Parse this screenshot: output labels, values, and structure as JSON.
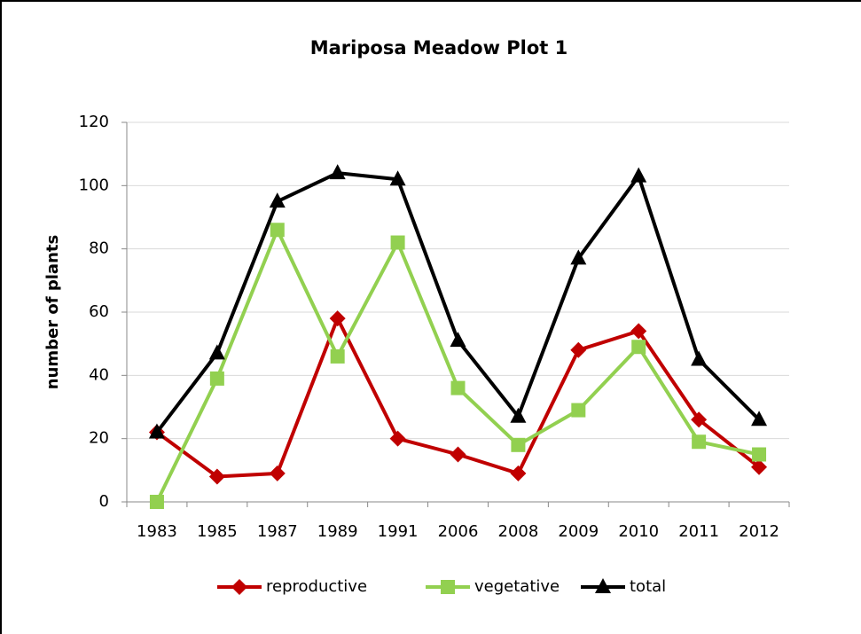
{
  "chart_data": {
    "type": "line",
    "title": "Mariposa Meadow Plot 1",
    "y_label": "number of plants",
    "categories": [
      "1983",
      "1985",
      "1987",
      "1989",
      "1991",
      "2006",
      "2008",
      "2009",
      "2010",
      "2011",
      "2012"
    ],
    "series": [
      {
        "name": "reproductive",
        "color": "#c00000",
        "marker": "diamond",
        "values": [
          22,
          8,
          9,
          58,
          20,
          15,
          9,
          48,
          54,
          26,
          11
        ]
      },
      {
        "name": "vegetative",
        "color": "#92d050",
        "marker": "square",
        "values": [
          0,
          39,
          86,
          46,
          82,
          36,
          18,
          29,
          49,
          19,
          15
        ]
      },
      {
        "name": "total",
        "color": "#000000",
        "marker": "triangle",
        "values": [
          22,
          47,
          95,
          104,
          102,
          51,
          27,
          77,
          103,
          45,
          26
        ]
      }
    ],
    "ylim": [
      0,
      120
    ],
    "yticks": [
      0,
      20,
      40,
      60,
      80,
      100,
      120
    ],
    "grid": true,
    "legend": "bottom"
  }
}
